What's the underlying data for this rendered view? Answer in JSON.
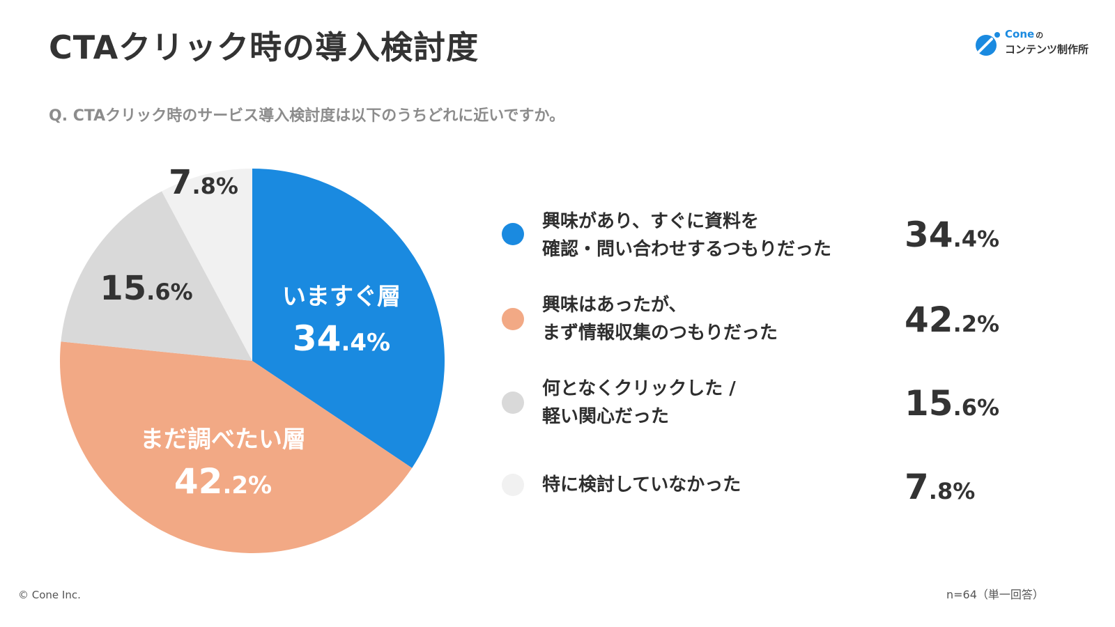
{
  "title": "CTAクリック時の導入検討度",
  "logo": {
    "brand": "Cone",
    "no": "の",
    "line2": "コンテンツ制作所"
  },
  "question": "Q. CTAクリック時のサービス導入検討度は以下のうちどれに近いですか。",
  "chart_data": {
    "type": "pie",
    "categories": [
      "興味があり、すぐに資料を確認・問い合わせするつもりだった",
      "興味はあったが、まず情報収集のつもりだった",
      "何となくクリックした / 軽い関心だった",
      "特に検討していなかった"
    ],
    "values": [
      34.4,
      42.2,
      15.6,
      7.8
    ],
    "colors": [
      "#1a8ae0",
      "#f2a985",
      "#d9d9d9",
      "#f1f1f1"
    ],
    "slice_labels": [
      "いますぐ層",
      "まだ調べたい層",
      "",
      ""
    ],
    "display_values": [
      {
        "int": "34",
        "dec": ".4",
        "unit": "%"
      },
      {
        "int": "42",
        "dec": ".2",
        "unit": "%"
      },
      {
        "int": "15",
        "dec": ".6",
        "unit": "%"
      },
      {
        "int": "7",
        "dec": ".8",
        "unit": "%"
      }
    ],
    "start_angle_deg": 0,
    "direction": "clockwise"
  },
  "legend": [
    {
      "label": "興味があり、すぐに資料を\n確認・問い合わせするつもりだった",
      "int": "34",
      "dec": ".4",
      "unit": "%",
      "color": "#1a8ae0"
    },
    {
      "label": "興味はあったが、\nまず情報収集のつもりだった",
      "int": "42",
      "dec": ".2",
      "unit": "%",
      "color": "#f2a985"
    },
    {
      "label": "何となくクリックした /\n軽い関心だった",
      "int": "15",
      "dec": ".6",
      "unit": "%",
      "color": "#d9d9d9"
    },
    {
      "label": "特に検討していなかった",
      "int": "7",
      "dec": ".8",
      "unit": "%",
      "color": "#f1f1f1"
    }
  ],
  "footer": {
    "copyright": "© Cone Inc.",
    "note": "n=64（単一回答）"
  }
}
